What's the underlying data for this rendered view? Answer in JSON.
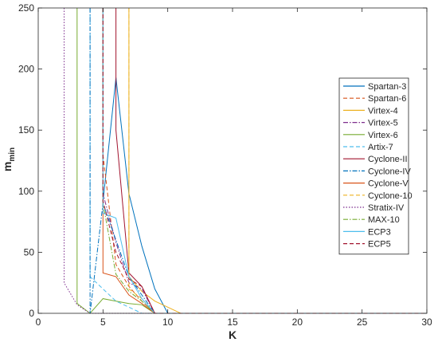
{
  "chart_data": {
    "type": "line",
    "title": "",
    "xlabel": "K",
    "ylabel": "m",
    "ylabel_sub": "min",
    "xlim": [
      0,
      30
    ],
    "ylim": [
      0,
      250
    ],
    "xticks": [
      "0",
      "5",
      "10",
      "15",
      "20",
      "25",
      "30"
    ],
    "yticks": [
      "0",
      "50",
      "100",
      "150",
      "200",
      "250"
    ],
    "grid": false,
    "legend_position": "right",
    "series": [
      {
        "name": "Spartan-3",
        "color": "#0072BD",
        "dash": "solid",
        "x": [
          5,
          6,
          7,
          8,
          9,
          10,
          30
        ],
        "y": [
          91,
          193,
          98,
          55,
          20,
          0,
          0
        ]
      },
      {
        "name": "Spartan-6",
        "color": "#D95319",
        "dash": "dashed",
        "x": [
          5,
          5,
          6,
          7,
          8,
          9,
          30
        ],
        "y": [
          250,
          130,
          40,
          22,
          10,
          0,
          0
        ]
      },
      {
        "name": "Virtex-4",
        "color": "#EDB120",
        "dash": "solid",
        "x": [
          7,
          7,
          8,
          9,
          10,
          11,
          30
        ],
        "y": [
          250,
          30,
          18,
          10,
          5,
          0,
          0
        ]
      },
      {
        "name": "Virtex-5",
        "color": "#7E2F8E",
        "dash": "dashdot",
        "x": [
          5,
          5,
          6,
          7,
          8,
          9,
          30
        ],
        "y": [
          250,
          98,
          58,
          25,
          20,
          0,
          0
        ]
      },
      {
        "name": "Virtex-6",
        "color": "#77AC30",
        "dash": "solid",
        "x": [
          3,
          3,
          4,
          5,
          6,
          7,
          8,
          9,
          30
        ],
        "y": [
          250,
          8,
          0,
          12,
          10,
          8,
          7,
          0,
          0
        ]
      },
      {
        "name": "Artix-7",
        "color": "#4DBEEE",
        "dash": "dashed",
        "x": [
          4,
          4,
          5,
          6,
          7,
          8,
          30
        ],
        "y": [
          250,
          30,
          20,
          10,
          5,
          0,
          0
        ]
      },
      {
        "name": "Cyclone-II",
        "color": "#A2142F",
        "dash": "solid",
        "x": [
          6,
          6,
          7,
          8,
          9,
          30
        ],
        "y": [
          250,
          150,
          33,
          22,
          0,
          0
        ]
      },
      {
        "name": "Cyclone-IV",
        "color": "#0072BD",
        "dash": "dashdot",
        "x": [
          4,
          4,
          5,
          6,
          7,
          8,
          9,
          30
        ],
        "y": [
          250,
          0,
          90,
          60,
          30,
          15,
          0,
          0
        ]
      },
      {
        "name": "Cyclone-V",
        "color": "#D95319",
        "dash": "solid",
        "x": [
          5,
          5,
          6,
          7,
          8,
          9,
          30
        ],
        "y": [
          250,
          33,
          30,
          15,
          8,
          0,
          0
        ]
      },
      {
        "name": "Cyclone-10",
        "color": "#EDB120",
        "dash": "dashed",
        "x": [
          7,
          7,
          8,
          9,
          30
        ],
        "y": [
          250,
          20,
          12,
          0,
          0
        ]
      },
      {
        "name": "Stratix-IV",
        "color": "#7E2F8E",
        "dash": "dotted",
        "x": [
          2,
          2,
          3,
          4,
          30
        ],
        "y": [
          250,
          25,
          7,
          0,
          0
        ]
      },
      {
        "name": "MAX-10",
        "color": "#77AC30",
        "dash": "dashdot",
        "x": [
          5,
          5,
          6,
          7,
          8,
          9,
          30
        ],
        "y": [
          250,
          90,
          32,
          18,
          10,
          0,
          0
        ]
      },
      {
        "name": "ECP3",
        "color": "#4DBEEE",
        "dash": "solid",
        "x": [
          5,
          5,
          6,
          7,
          8,
          9,
          30
        ],
        "y": [
          250,
          82,
          78,
          30,
          12,
          0,
          0
        ]
      },
      {
        "name": "ECP5",
        "color": "#A2142F",
        "dash": "dashed",
        "x": [
          5,
          5,
          6,
          7,
          8,
          9,
          30
        ],
        "y": [
          250,
          92,
          50,
          28,
          22,
          0,
          0
        ]
      }
    ]
  }
}
